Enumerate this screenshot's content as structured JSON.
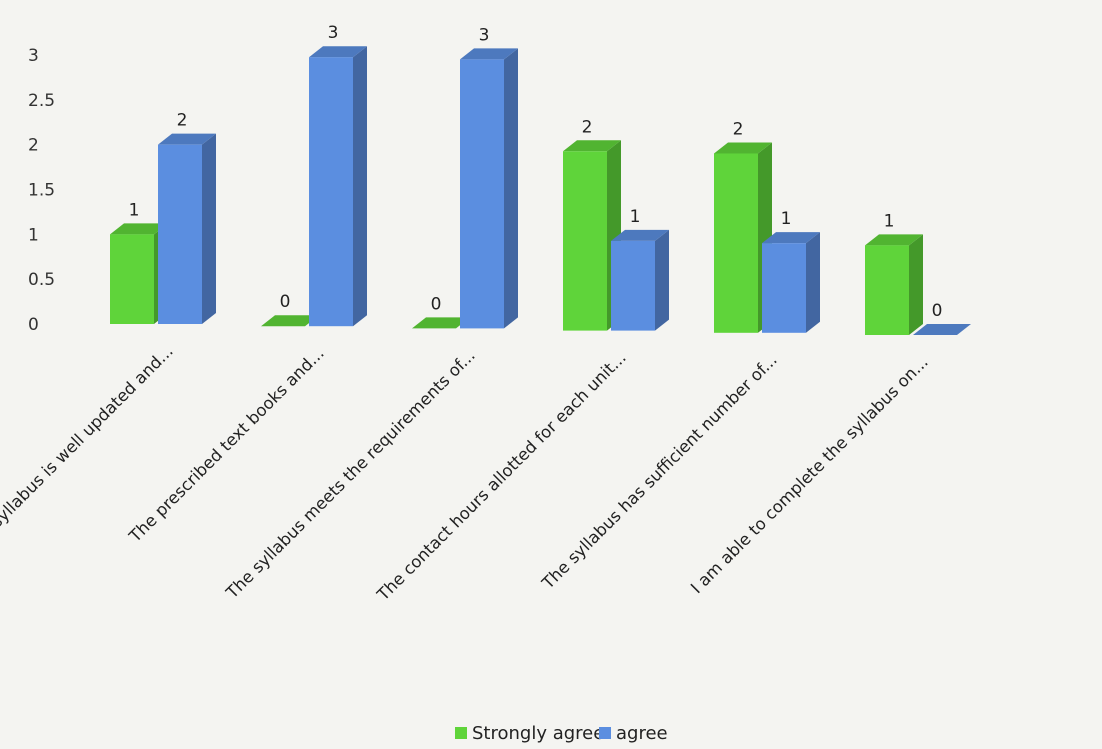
{
  "chart_data": {
    "type": "bar",
    "categories": [
      "The syllabus is well updated and...",
      "The prescribed text books and...",
      "The syllabus meets the requirements of...",
      "The contact hours allotted for each unit...",
      "The syllabus has sufficient number of...",
      "I am able to complete the syllabus on..."
    ],
    "series": [
      {
        "name": "Strongly agree",
        "values": [
          1,
          0,
          0,
          2,
          2,
          1
        ],
        "color": "#5fd43a"
      },
      {
        "name": "agree",
        "values": [
          2,
          3,
          3,
          1,
          1,
          0
        ],
        "color": "#5b8ee0"
      }
    ],
    "yticks": [
      "0",
      "0.5",
      "1",
      "1.5",
      "2",
      "2.5",
      "3"
    ],
    "ylim": [
      0,
      3
    ],
    "data_labels": true,
    "legend_position": "bottom",
    "grid": false,
    "style": "3d-clustered-column"
  }
}
